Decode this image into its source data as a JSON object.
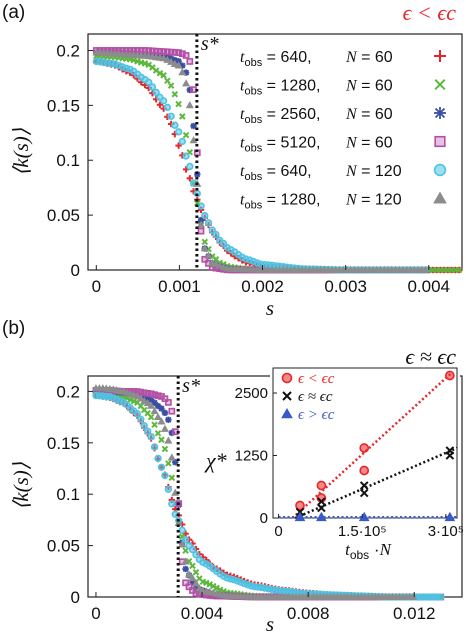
{
  "chart_data": [
    {
      "panel_label": "(a)",
      "type": "scatter",
      "regime": "ϵ < ϵc",
      "regime_color": "#e8262a",
      "xlabel": "s",
      "ylabel": "⟨k(s)⟩",
      "xlim": [
        -0.0001,
        0.0044
      ],
      "ylim": [
        0,
        0.215
      ],
      "xticks": [
        0,
        0.001,
        0.002,
        0.003,
        0.004
      ],
      "xtick_labels": [
        "0",
        "0.001",
        "0.002",
        "0.003",
        "0.004"
      ],
      "yticks": [
        0,
        0.05,
        0.1,
        0.15,
        0.2
      ],
      "ytick_labels": [
        "0",
        "0.05",
        "0.1",
        "0.15",
        "0.2"
      ],
      "critical_line": {
        "x": 0.00121,
        "label": "s*"
      },
      "series": [
        {
          "name": "t_obs = 640,    N = 60",
          "marker": "plus",
          "color": "#e8262a",
          "x": [
            0,
            0.0002,
            0.0004,
            0.0006,
            0.0008,
            0.0009,
            0.001,
            0.0011,
            0.0012,
            0.0013,
            0.0014,
            0.0015,
            0.0016,
            0.0017,
            0.0018,
            0.002,
            0.0025,
            0.003,
            0.0035,
            0.004,
            0.0044
          ],
          "values": [
            0.19,
            0.187,
            0.18,
            0.168,
            0.148,
            0.133,
            0.112,
            0.088,
            0.066,
            0.048,
            0.034,
            0.024,
            0.016,
            0.011,
            0.007,
            0.003,
            0.001,
            0,
            0,
            0,
            0
          ]
        },
        {
          "name": "t_obs = 1280,   N = 60",
          "marker": "x",
          "color": "#5cb83c",
          "x": [
            0,
            0.0002,
            0.0004,
            0.0006,
            0.0008,
            0.0009,
            0.001,
            0.0011,
            0.0012,
            0.0013,
            0.0014,
            0.0015,
            0.0016,
            0.0018,
            0.002,
            0.0025,
            0.003,
            0.0035,
            0.004,
            0.0044
          ],
          "values": [
            0.195,
            0.194,
            0.192,
            0.188,
            0.178,
            0.168,
            0.15,
            0.118,
            0.065,
            0.026,
            0.012,
            0.006,
            0.003,
            0.001,
            0,
            0,
            0,
            0,
            0,
            0
          ]
        },
        {
          "name": "t_obs = 2560,   N = 60",
          "marker": "asterisk",
          "color": "#3a4fa3",
          "x": [
            0,
            0.0002,
            0.0004,
            0.0006,
            0.0008,
            0.001,
            0.0011,
            0.00115,
            0.0012,
            0.00125,
            0.0013,
            0.0014,
            0.0016,
            0.002,
            0.003,
            0.004
          ],
          "values": [
            0.198,
            0.198,
            0.197,
            0.196,
            0.195,
            0.19,
            0.178,
            0.15,
            0.1,
            0.05,
            0.02,
            0.005,
            0.001,
            0,
            0,
            0
          ]
        },
        {
          "name": "t_obs = 5120,   N = 60",
          "marker": "square",
          "color": "#b44fa6",
          "x": [
            0,
            0.0002,
            0.0004,
            0.0006,
            0.0008,
            0.001,
            0.0011,
            0.00115,
            0.0012,
            0.00125,
            0.0013,
            0.0014,
            0.0016,
            0.002,
            0.003,
            0.004
          ],
          "values": [
            0.2,
            0.2,
            0.2,
            0.2,
            0.199,
            0.198,
            0.195,
            0.185,
            0.13,
            0.04,
            0.01,
            0.002,
            0,
            0,
            0,
            0
          ]
        },
        {
          "name": "t_obs = 640,    N = 120",
          "marker": "circle",
          "color": "#4fc3e3",
          "x": [
            0,
            0.0002,
            0.0004,
            0.0006,
            0.0008,
            0.001,
            0.0011,
            0.0012,
            0.0013,
            0.0014,
            0.0015,
            0.0016,
            0.0018,
            0.002,
            0.0025,
            0.003,
            0.0035,
            0.004
          ],
          "values": [
            0.19,
            0.188,
            0.183,
            0.173,
            0.155,
            0.125,
            0.1,
            0.072,
            0.05,
            0.036,
            0.026,
            0.019,
            0.01,
            0.005,
            0.001,
            0,
            0,
            0
          ]
        },
        {
          "name": "t_obs = 1280,   N = 120",
          "marker": "triangle",
          "color": "#8c8c8c",
          "x": [
            0,
            0.0002,
            0.0004,
            0.0006,
            0.0008,
            0.001,
            0.00105,
            0.0011,
            0.00115,
            0.0012,
            0.00125,
            0.0013,
            0.0014,
            0.0016,
            0.002,
            0.003,
            0.004
          ],
          "values": [
            0.198,
            0.197,
            0.196,
            0.195,
            0.193,
            0.186,
            0.178,
            0.165,
            0.135,
            0.09,
            0.045,
            0.02,
            0.006,
            0.001,
            0,
            0,
            0
          ]
        }
      ],
      "legend": [
        {
          "tobs": "640",
          "N": "60",
          "marker": "plus",
          "color": "#e8262a"
        },
        {
          "tobs": "1280",
          "N": "60",
          "marker": "x",
          "color": "#5cb83c"
        },
        {
          "tobs": "2560",
          "N": "60",
          "marker": "asterisk",
          "color": "#3a4fa3"
        },
        {
          "tobs": "5120",
          "N": "60",
          "marker": "square",
          "color": "#b44fa6"
        },
        {
          "tobs": "640",
          "N": "120",
          "marker": "circle",
          "color": "#4fc3e3"
        },
        {
          "tobs": "1280",
          "N": "120",
          "marker": "triangle",
          "color": "#8c8c8c"
        }
      ]
    },
    {
      "panel_label": "(b)",
      "type": "scatter",
      "regime": "ϵ ≈ ϵc",
      "regime_color": "#111111",
      "xlabel": "s",
      "ylabel": "⟨k(s)⟩",
      "xlim": [
        -0.0003,
        0.0138
      ],
      "ylim": [
        0,
        0.215
      ],
      "xticks": [
        0,
        0.004,
        0.008,
        0.012
      ],
      "xtick_labels": [
        "0",
        "0.004",
        "0.008",
        "0.012"
      ],
      "yticks": [
        0,
        0.05,
        0.1,
        0.15,
        0.2
      ],
      "ytick_labels": [
        "0",
        "0.05",
        "0.1",
        "0.15",
        "0.2"
      ],
      "critical_line": {
        "x": 0.0031,
        "label": "s*"
      },
      "series": [
        {
          "name": "t_obs = 640, N = 60",
          "marker": "plus",
          "color": "#e8262a",
          "x": [
            0,
            0.0005,
            0.001,
            0.0015,
            0.002,
            0.0025,
            0.003,
            0.0035,
            0.004,
            0.0045,
            0.005,
            0.006,
            0.007,
            0.008,
            0.009,
            0.01,
            0.011,
            0.012,
            0.013
          ],
          "values": [
            0.196,
            0.194,
            0.189,
            0.178,
            0.158,
            0.125,
            0.085,
            0.056,
            0.039,
            0.028,
            0.021,
            0.012,
            0.007,
            0.004,
            0.002,
            0.001,
            0,
            0,
            0
          ]
        },
        {
          "name": "t_obs = 1280, N = 60",
          "marker": "x",
          "color": "#5cb83c",
          "x": [
            0,
            0.0005,
            0.001,
            0.0015,
            0.002,
            0.0025,
            0.0028,
            0.003,
            0.0032,
            0.0035,
            0.004,
            0.005,
            0.006,
            0.008,
            0.01,
            0.012,
            0.013
          ],
          "values": [
            0.198,
            0.197,
            0.195,
            0.19,
            0.178,
            0.152,
            0.125,
            0.09,
            0.062,
            0.035,
            0.015,
            0.004,
            0.001,
            0,
            0,
            0,
            0
          ]
        },
        {
          "name": "t_obs = 2560, N = 60",
          "marker": "asterisk",
          "color": "#3a4fa3",
          "x": [
            0,
            0.0005,
            0.001,
            0.0015,
            0.002,
            0.0025,
            0.0028,
            0.003,
            0.0031,
            0.0032,
            0.0034,
            0.0038,
            0.0045,
            0.006,
            0.008,
            0.012
          ],
          "values": [
            0.2,
            0.2,
            0.199,
            0.197,
            0.193,
            0.183,
            0.17,
            0.13,
            0.095,
            0.06,
            0.025,
            0.008,
            0.002,
            0,
            0,
            0
          ]
        },
        {
          "name": "t_obs = 5120, N = 60",
          "marker": "square",
          "color": "#b44fa6",
          "x": [
            0,
            0.0005,
            0.001,
            0.0015,
            0.002,
            0.0025,
            0.0028,
            0.003,
            0.0031,
            0.0032,
            0.0034,
            0.0038,
            0.0045,
            0.006,
            0.008,
            0.01,
            0.013
          ],
          "values": [
            0.201,
            0.201,
            0.2,
            0.2,
            0.198,
            0.195,
            0.188,
            0.16,
            0.1,
            0.04,
            0.012,
            0.003,
            0.001,
            0,
            0,
            0,
            0
          ]
        },
        {
          "name": "t_obs = 640, N = 120",
          "marker": "circle",
          "color": "#4fc3e3",
          "x": [
            0,
            0.0005,
            0.001,
            0.0015,
            0.002,
            0.0025,
            0.003,
            0.0035,
            0.004,
            0.005,
            0.006,
            0.007,
            0.008,
            0.009,
            0.01,
            0.011,
            0.012,
            0.013
          ],
          "values": [
            0.196,
            0.195,
            0.19,
            0.18,
            0.16,
            0.125,
            0.08,
            0.05,
            0.034,
            0.018,
            0.01,
            0.006,
            0.003,
            0.002,
            0.001,
            0,
            0,
            0
          ]
        },
        {
          "name": "t_obs = 1280, N = 120",
          "marker": "triangle",
          "color": "#8c8c8c",
          "x": [
            0,
            0.0003,
            0.0006,
            0.001,
            0.0015,
            0.002,
            0.0025,
            0.0028,
            0.003,
            0.0032,
            0.0035,
            0.004,
            0.005,
            0.006,
            0.008,
            0.01,
            0.012
          ],
          "values": [
            0.203,
            0.203,
            0.202,
            0.2,
            0.196,
            0.188,
            0.17,
            0.148,
            0.1,
            0.055,
            0.022,
            0.006,
            0.001,
            0,
            0,
            0,
            0
          ]
        }
      ],
      "inset": {
        "type": "scatter",
        "ylabel": "χ*",
        "xlabel": "t_obs · N",
        "xlim": [
          -10000,
          320000
        ],
        "ylim": [
          0,
          3000
        ],
        "xticks": [
          0,
          150000,
          300000
        ],
        "xtick_labels": [
          "0",
          "1.5·10⁵",
          "3·10⁵"
        ],
        "yticks": [
          0,
          1250,
          2500
        ],
        "ytick_labels": [
          "0",
          "1250",
          "2500"
        ],
        "series": [
          {
            "name": "ϵ < ϵc",
            "marker": "circle",
            "color": "#e8262a",
            "x": [
              38400,
              76800,
              76800,
              153600,
              153600,
              307200
            ],
            "values": [
              250,
              400,
              650,
              950,
              1400,
              2850
            ],
            "fit": [
              [
                25000,
                0
              ],
              [
                310000,
                2900
              ]
            ]
          },
          {
            "name": "ϵ ≈ ϵc",
            "marker": "x",
            "color": "#111111",
            "x": [
              38400,
              76800,
              76800,
              153600,
              153600,
              307200,
              307200
            ],
            "values": [
              120,
              200,
              330,
              500,
              650,
              1250,
              1350
            ],
            "fit": [
              [
                30000,
                0
              ],
              [
                320000,
                1400
              ]
            ]
          },
          {
            "name": "ϵ > ϵc",
            "marker": "triangle",
            "color": "#3a5bc7",
            "x": [
              38400,
              76800,
              153600,
              307200
            ],
            "values": [
              15,
              15,
              15,
              15
            ],
            "fit": [
              [
                0,
                15
              ],
              [
                320000,
                15
              ]
            ]
          }
        ]
      }
    }
  ]
}
